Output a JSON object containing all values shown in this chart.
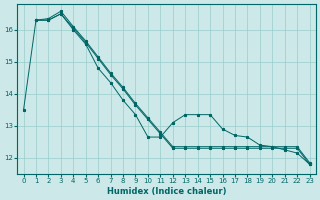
{
  "title": "",
  "xlabel": "Humidex (Indice chaleur)",
  "bg_color": "#cce8e8",
  "grid_color": "#99cccc",
  "line_color": "#006666",
  "xlim": [
    -0.5,
    23.5
  ],
  "ylim": [
    11.5,
    16.8
  ],
  "yticks": [
    12,
    13,
    14,
    15,
    16
  ],
  "xticks": [
    0,
    1,
    2,
    3,
    4,
    5,
    6,
    7,
    8,
    9,
    10,
    11,
    12,
    13,
    14,
    15,
    16,
    17,
    18,
    19,
    20,
    21,
    22,
    23
  ],
  "series_jagged": {
    "x": [
      0,
      1,
      2,
      3,
      4,
      5,
      6,
      7,
      8,
      9,
      10,
      11,
      12,
      13,
      14,
      15,
      16,
      17,
      18,
      19,
      20,
      21,
      22,
      23
    ],
    "y": [
      13.5,
      16.3,
      16.3,
      16.5,
      16.0,
      15.55,
      14.8,
      14.35,
      13.8,
      13.35,
      12.65,
      12.65,
      13.1,
      13.35,
      13.35,
      13.35,
      12.9,
      12.7,
      12.65,
      12.4,
      12.35,
      12.25,
      12.15,
      11.8
    ]
  },
  "series_line1": {
    "x": [
      1,
      2,
      3,
      4,
      5,
      6,
      7,
      8,
      9,
      10,
      11,
      12,
      13,
      14,
      15,
      16,
      17,
      18,
      19,
      20,
      21,
      22,
      23
    ],
    "y": [
      16.3,
      16.3,
      16.5,
      16.05,
      15.6,
      15.1,
      14.6,
      14.15,
      13.65,
      13.2,
      12.75,
      12.3,
      12.3,
      12.3,
      12.3,
      12.3,
      12.3,
      12.3,
      12.3,
      12.3,
      12.3,
      12.3,
      11.8
    ]
  },
  "series_line2": {
    "x": [
      1,
      2,
      3,
      4,
      5,
      6,
      7,
      8,
      9,
      10,
      11,
      12,
      13,
      14,
      15,
      16,
      17,
      18,
      19,
      20,
      21,
      22,
      23
    ],
    "y": [
      16.3,
      16.35,
      16.58,
      16.1,
      15.65,
      15.15,
      14.65,
      14.2,
      13.7,
      13.25,
      12.8,
      12.35,
      12.35,
      12.35,
      12.35,
      12.35,
      12.35,
      12.35,
      12.35,
      12.35,
      12.35,
      12.35,
      11.85
    ]
  }
}
